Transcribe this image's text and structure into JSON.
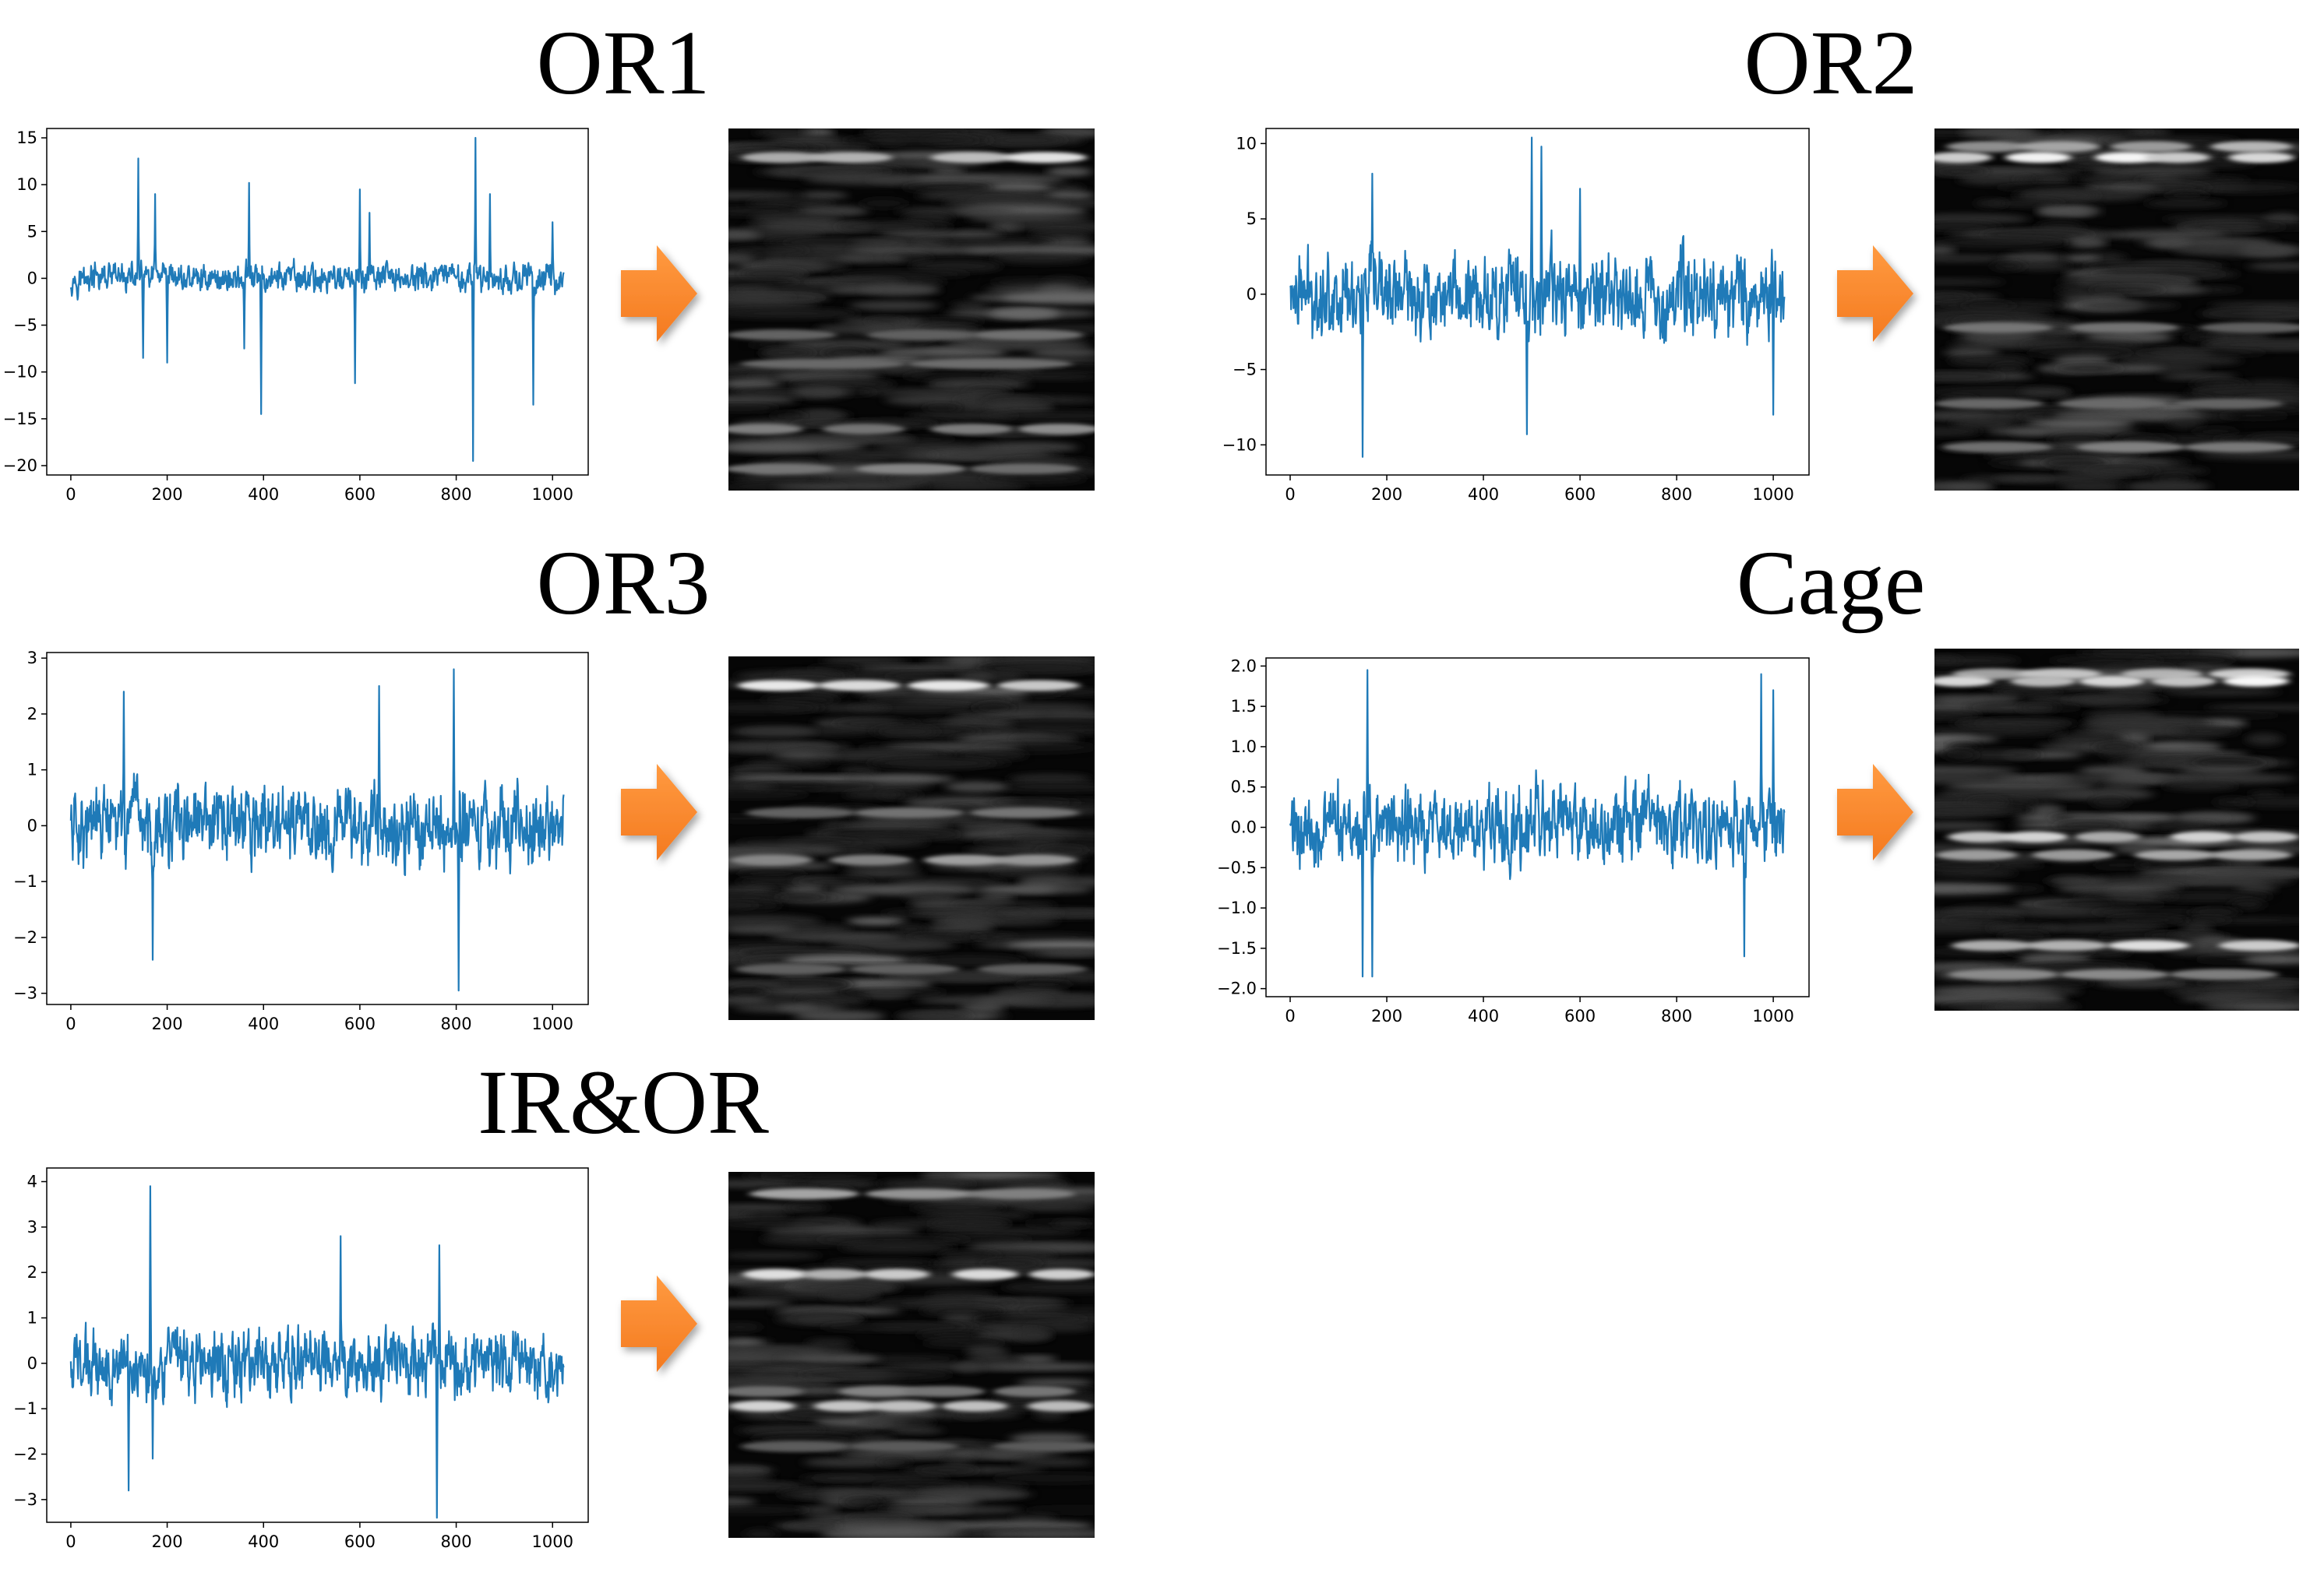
{
  "panels": [
    {
      "id": "or1",
      "title": "OR1",
      "ylim": [
        -21,
        16
      ],
      "yticks": [
        15,
        10,
        5,
        0,
        -5,
        -10,
        -15,
        -20
      ],
      "xlim": [
        -50,
        1074
      ],
      "xticks": [
        0,
        200,
        400,
        600,
        800,
        1000
      ],
      "amp": 2.4,
      "spikes": [
        [
          140,
          12.8
        ],
        [
          150,
          -8.5
        ],
        [
          175,
          9
        ],
        [
          200,
          -9
        ],
        [
          370,
          10.2
        ],
        [
          395,
          -14.5
        ],
        [
          360,
          -7.5
        ],
        [
          600,
          9.5
        ],
        [
          590,
          -11.2
        ],
        [
          620,
          7
        ],
        [
          840,
          15
        ],
        [
          835,
          -19.5
        ],
        [
          870,
          9
        ],
        [
          960,
          -13.5
        ],
        [
          1000,
          6
        ]
      ]
    },
    {
      "id": "or2",
      "title": "OR2",
      "ylim": [
        -12,
        11
      ],
      "yticks": [
        10,
        5,
        0,
        -5,
        -10
      ],
      "xlim": [
        -50,
        1074
      ],
      "xticks": [
        0,
        200,
        400,
        600,
        800,
        1000
      ],
      "amp": 4.2,
      "spikes": [
        [
          150,
          -10.8
        ],
        [
          170,
          8
        ],
        [
          500,
          10.4
        ],
        [
          520,
          9.8
        ],
        [
          490,
          -9.3
        ],
        [
          600,
          7
        ],
        [
          1000,
          -8
        ]
      ]
    },
    {
      "id": "or3",
      "title": "OR3",
      "ylim": [
        -3.2,
        3.1
      ],
      "yticks": [
        3,
        2,
        1,
        0,
        -1,
        -2,
        -3
      ],
      "xlim": [
        -50,
        1074
      ],
      "xticks": [
        0,
        200,
        400,
        600,
        800,
        1000
      ],
      "amp": 1.05,
      "spikes": [
        [
          110,
          2.4
        ],
        [
          640,
          2.5
        ],
        [
          795,
          2.8
        ],
        [
          805,
          -2.95
        ],
        [
          170,
          -2.4
        ]
      ]
    },
    {
      "id": "cage",
      "title": "Cage",
      "ylim": [
        -2.1,
        2.1
      ],
      "yticks": [
        2.0,
        1.5,
        1.0,
        0.5,
        0.0,
        -0.5,
        -1.0,
        -1.5,
        -2.0
      ],
      "ytickLabels": [
        "2.0",
        "1.5",
        "1.0",
        "0.5",
        "0.0",
        "−0.5",
        "−1.0",
        "−1.5",
        "−2.0"
      ],
      "xlim": [
        -50,
        1074
      ],
      "xticks": [
        0,
        200,
        400,
        600,
        800,
        1000
      ],
      "amp": 0.75,
      "spikes": [
        [
          160,
          1.95
        ],
        [
          150,
          -1.85
        ],
        [
          170,
          -1.85
        ],
        [
          975,
          1.9
        ],
        [
          1000,
          1.7
        ],
        [
          940,
          -1.6
        ]
      ]
    },
    {
      "id": "iror",
      "title": "IR&OR",
      "ylim": [
        -3.5,
        4.3
      ],
      "yticks": [
        4,
        3,
        2,
        1,
        0,
        -1,
        -2,
        -3
      ],
      "xlim": [
        -50,
        1074
      ],
      "xticks": [
        0,
        200,
        400,
        600,
        800,
        1000
      ],
      "amp": 1.1,
      "spikes": [
        [
          165,
          3.9
        ],
        [
          170,
          -2.1
        ],
        [
          560,
          2.8
        ],
        [
          760,
          -3.4
        ],
        [
          765,
          2.6
        ],
        [
          120,
          -2.8
        ]
      ]
    }
  ],
  "arrow_color": "#f47a20",
  "line_color": "#1f7ab8"
}
